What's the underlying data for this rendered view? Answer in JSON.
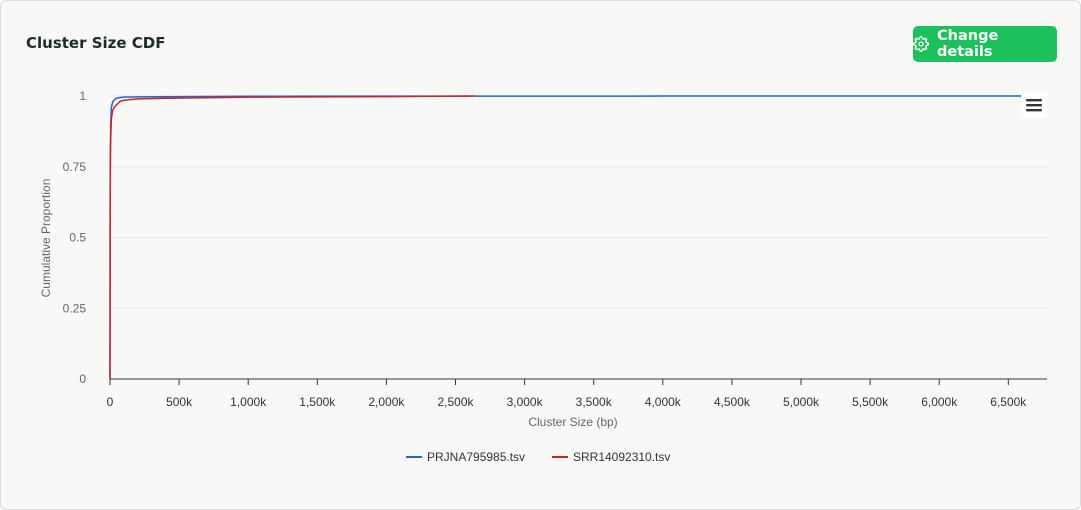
{
  "header": {
    "title": "Cluster Size CDF",
    "button_label": "Change details",
    "button_icon": "gear-icon"
  },
  "menu_icon": "hamburger-menu-icon",
  "colors": {
    "button_bg": "#1cc15b",
    "series_1": "#2563c8",
    "series_2": "#c8242e"
  },
  "chart_data": {
    "type": "line",
    "title": "",
    "xlabel": "Cluster Size (bp)",
    "ylabel": "Cumulative Proportion",
    "xlim": [
      0,
      6780000
    ],
    "ylim": [
      0,
      1
    ],
    "x_ticks": [
      0,
      500000,
      1000000,
      1500000,
      2000000,
      2500000,
      3000000,
      3500000,
      4000000,
      4500000,
      5000000,
      5500000,
      6000000,
      6500000
    ],
    "x_tick_labels": [
      "0",
      "500k",
      "1,000k",
      "1,500k",
      "2,000k",
      "2,500k",
      "3,000k",
      "3,500k",
      "4,000k",
      "4,500k",
      "5,000k",
      "5,500k",
      "6,000k",
      "6,500k"
    ],
    "y_ticks": [
      0,
      0.25,
      0.5,
      0.75,
      1
    ],
    "y_tick_labels": [
      "0",
      "0.25",
      "0.5",
      "0.75",
      "1"
    ],
    "grid": true,
    "legend_position": "bottom-center",
    "series": [
      {
        "name": "PRJNA795985.tsv",
        "color": "#2563c8",
        "x": [
          0,
          1000,
          2000,
          5000,
          10000,
          20000,
          40000,
          60000,
          100000,
          200000,
          500000,
          1000000,
          2000000,
          3000000,
          4000000,
          5000000,
          6000000,
          6600000
        ],
        "y": [
          0,
          0.6,
          0.8,
          0.9,
          0.96,
          0.98,
          0.99,
          0.994,
          0.996,
          0.997,
          0.998,
          0.999,
          0.9995,
          0.9997,
          0.9998,
          0.9999,
          0.9999,
          1
        ]
      },
      {
        "name": "SRR14092310.tsv",
        "color": "#c8242e",
        "x": [
          0,
          1000,
          3000,
          5000,
          10000,
          20000,
          30000,
          50000,
          70000,
          100000,
          200000,
          400000,
          700000,
          1000000,
          1500000,
          2000000,
          2640000
        ],
        "y": [
          0,
          0.5,
          0.75,
          0.85,
          0.92,
          0.95,
          0.96,
          0.97,
          0.98,
          0.985,
          0.99,
          0.992,
          0.994,
          0.996,
          0.997,
          0.998,
          1
        ]
      }
    ]
  }
}
